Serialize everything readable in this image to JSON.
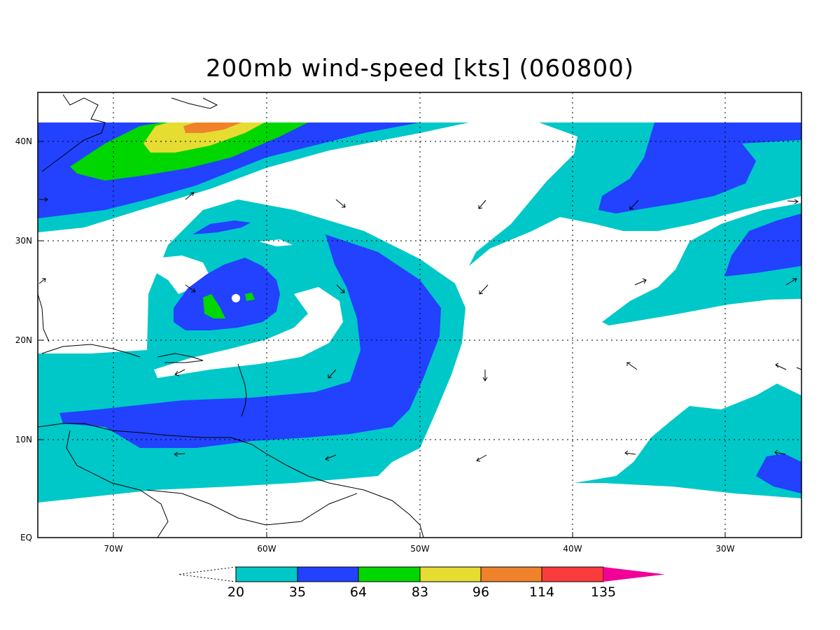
{
  "title": "200mb wind-speed [kts] (060800)",
  "map": {
    "lat_labels": [
      "EQ",
      "10N",
      "20N",
      "30N",
      "40N"
    ],
    "lon_labels": [
      "70W",
      "60W",
      "50W",
      "40W",
      "30W"
    ],
    "lat_range": [
      0,
      44.5
    ],
    "lon_range": [
      -75,
      -25
    ],
    "data_top_lat": 42,
    "gridlines": "dotted"
  },
  "colorbar": {
    "levels": [
      "20",
      "35",
      "64",
      "83",
      "96",
      "114",
      "135"
    ],
    "colors": [
      "#00c8c8",
      "#2242ff",
      "#00d600",
      "#e6dc32",
      "#f0822c",
      "#fa3c3c",
      "#f00096"
    ],
    "lower_extension": "white",
    "upper_extension": "#f00096"
  },
  "shading_colors": {
    "band_20_35": "#00c8c8",
    "band_35_64": "#2242ff",
    "band_64_83": "#00d600",
    "band_83_96": "#e6dc32",
    "band_96_114": "#f0822c"
  }
}
